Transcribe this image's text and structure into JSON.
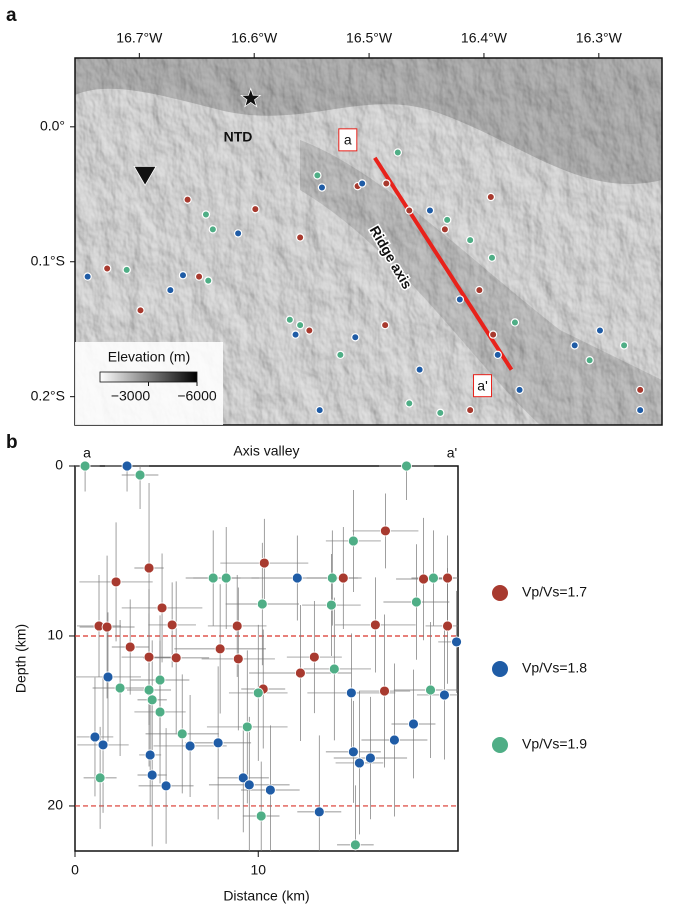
{
  "chart_data": [
    {
      "type": "map",
      "panel": "a",
      "xlim": [
        -16.756,
        -16.245
      ],
      "ylim": [
        -0.221,
        0.051
      ],
      "xticks": [
        {
          "value": -16.7,
          "label": "16.7°W"
        },
        {
          "value": -16.6,
          "label": "16.6°W"
        },
        {
          "value": -16.5,
          "label": "16.5°W"
        },
        {
          "value": -16.4,
          "label": "16.4°W"
        },
        {
          "value": -16.3,
          "label": "16.3°W"
        }
      ],
      "yticks": [
        {
          "value": 0,
          "label": "0.0°"
        },
        {
          "value": -0.1,
          "label": "0.1°S"
        },
        {
          "value": -0.2,
          "label": "0.2°S"
        }
      ],
      "annotations": {
        "basin": "NTD",
        "ridge": "Ridge axis"
      },
      "profile": {
        "labels": [
          "a",
          "a'"
        ],
        "lon": [
          -16.495,
          -16.376
        ],
        "lat": [
          -0.023,
          -0.18
        ],
        "color": "#e8221b"
      },
      "markers": [
        {
          "shape": "star",
          "lon": -16.603,
          "lat": 0.021
        },
        {
          "shape": "triangle",
          "lon": -16.695,
          "lat": -0.036
        }
      ],
      "colorbar": {
        "label": "Elevation (m)",
        "clim": [
          0,
          -6000
        ],
        "ticks": [
          {
            "value": -3000,
            "label": "−3000"
          },
          {
            "value": -6000,
            "label": "−6000"
          }
        ]
      },
      "series": [
        {
          "color": "#a83a2f",
          "lon": [
            -16.728,
            -16.699,
            -16.658,
            -16.648,
            -16.599,
            -16.56,
            -16.51,
            -16.485,
            -16.465,
            -16.434,
            -16.404,
            -16.394,
            -16.392,
            -16.412,
            -16.486,
            -16.552,
            -16.264
          ],
          "lat": [
            -0.105,
            -0.136,
            -0.054,
            -0.111,
            -0.061,
            -0.082,
            -0.044,
            -0.042,
            -0.062,
            -0.076,
            -0.121,
            -0.052,
            -0.154,
            -0.21,
            -0.147,
            -0.151,
            -0.195
          ]
        },
        {
          "color": "#1f5ca6",
          "lon": [
            -16.745,
            -16.673,
            -16.662,
            -16.614,
            -16.541,
            -16.506,
            -16.447,
            -16.421,
            -16.388,
            -16.299,
            -16.264,
            -16.512,
            -16.543,
            -16.456,
            -16.369,
            -16.321,
            -16.564
          ],
          "lat": [
            -0.111,
            -0.121,
            -0.11,
            -0.079,
            -0.045,
            -0.042,
            -0.062,
            -0.128,
            -0.169,
            -0.151,
            -0.21,
            -0.156,
            -0.21,
            -0.18,
            -0.195,
            -0.162,
            -0.154
          ]
        },
        {
          "color": "#4fae86",
          "lon": [
            -16.711,
            -16.642,
            -16.636,
            -16.64,
            -16.545,
            -16.475,
            -16.432,
            -16.412,
            -16.393,
            -16.373,
            -16.278,
            -16.569,
            -16.56,
            -16.525,
            -16.465,
            -16.438,
            -16.308
          ],
          "lat": [
            -0.106,
            -0.065,
            -0.076,
            -0.114,
            -0.036,
            -0.019,
            -0.069,
            -0.084,
            -0.097,
            -0.145,
            -0.162,
            -0.143,
            -0.147,
            -0.169,
            -0.205,
            -0.212,
            -0.173
          ]
        }
      ]
    },
    {
      "type": "scatter",
      "panel": "b",
      "title": "Axis valley",
      "start_label": "a",
      "end_label": "a'",
      "xlabel": "Distance (km)",
      "ylabel": "Depth (km)",
      "xlim": [
        0,
        20.9
      ],
      "ylim": [
        0,
        22.65
      ],
      "invert_y": true,
      "xticks": [
        0,
        10
      ],
      "yticks": [
        0,
        10,
        20
      ],
      "reference_lines": [
        10,
        20
      ],
      "legend": "right",
      "series": [
        {
          "name": "Vp/Vs=1.7",
          "color": "#a83a2f",
          "x": [
            1.31,
            1.75,
            2.24,
            3.01,
            4.04,
            4.04,
            4.75,
            5.3,
            5.52,
            7.92,
            8.85,
            8.91,
            10.33,
            10.27,
            12.3,
            13.06,
            14.64,
            16.39,
            16.89,
            16.94,
            19.02,
            20.33,
            20.33
          ],
          "y": [
            9.41,
            9.47,
            6.82,
            10.65,
            6.0,
            11.24,
            8.35,
            9.35,
            11.29,
            10.76,
            9.41,
            11.35,
            5.71,
            13.12,
            12.18,
            11.24,
            6.59,
            9.35,
            13.24,
            3.82,
            6.65,
            6.59,
            9.41
          ],
          "xerr": [
            1.2,
            1.5,
            2.0,
            1.0,
            0.8,
            1.5,
            2.2,
            1.3,
            1.8,
            2.5,
            1.6,
            2.0,
            2.4,
            1.2,
            2.8,
            1.5,
            1.0,
            2.2,
            1.4,
            1.8,
            1.5,
            0.9,
            1.2
          ],
          "yerr": [
            3.0,
            4.2,
            3.5,
            2.8,
            5.0,
            4.0,
            3.2,
            2.5,
            4.5,
            3.8,
            3.0,
            4.2,
            2.6,
            3.5,
            4.0,
            3.3,
            3.0,
            2.8,
            4.5,
            2.2,
            3.6,
            2.5,
            3.4
          ]
        },
        {
          "name": "Vp/Vs=1.8",
          "color": "#1f5ca6",
          "x": [
            1.09,
            1.53,
            1.8,
            2.84,
            4.1,
            4.21,
            4.97,
            6.28,
            7.81,
            9.18,
            9.51,
            10.66,
            12.13,
            13.33,
            15.08,
            15.19,
            15.52,
            16.12,
            17.43,
            18.47,
            20.16,
            20.82
          ],
          "y": [
            15.94,
            16.41,
            12.41,
            0,
            17.0,
            18.18,
            18.82,
            16.47,
            16.29,
            18.35,
            18.76,
            19.06,
            6.59,
            20.35,
            13.35,
            16.82,
            17.47,
            17.18,
            16.12,
            15.18,
            13.47,
            10.35
          ],
          "xerr": [
            1.0,
            1.4,
            1.8,
            1.2,
            0.6,
            0.8,
            1.5,
            2.0,
            1.8,
            1.4,
            2.2,
            1.6,
            2.5,
            1.2,
            2.4,
            1.5,
            1.3,
            2.0,
            1.8,
            1.2,
            1.5,
            1.0
          ],
          "yerr": [
            3.5,
            4.0,
            3.8,
            1.5,
            3.0,
            4.2,
            3.4,
            3.0,
            4.5,
            3.2,
            4.0,
            3.8,
            2.5,
            4.5,
            3.5,
            3.0,
            4.2,
            3.6,
            4.5,
            3.2,
            3.8,
            3.0
          ]
        },
        {
          "name": "Vp/Vs=1.9",
          "color": "#4fae86",
          "x": [
            0.55,
            1.37,
            2.46,
            3.55,
            4.04,
            4.21,
            4.64,
            4.64,
            5.85,
            7.54,
            8.25,
            9.4,
            10.0,
            10.16,
            10.22,
            14.04,
            13.99,
            14.15,
            15.19,
            15.3,
            18.09,
            18.63,
            19.4,
            19.56
          ],
          "y": [
            0,
            18.35,
            13.06,
            0.53,
            13.18,
            13.76,
            12.59,
            14.47,
            15.76,
            6.59,
            6.59,
            15.35,
            13.35,
            20.59,
            8.12,
            6.59,
            8.18,
            11.94,
            4.41,
            22.29,
            0,
            8.0,
            13.18,
            6.59
          ],
          "xerr": [
            0.8,
            0.9,
            1.5,
            1.0,
            1.2,
            0.8,
            1.6,
            1.4,
            2.0,
            1.5,
            1.8,
            2.2,
            1.6,
            1.0,
            2.0,
            1.4,
            1.6,
            2.0,
            1.5,
            1.0,
            1.5,
            1.8,
            2.0,
            1.2
          ],
          "yerr": [
            1.5,
            3.0,
            4.0,
            2.0,
            4.5,
            3.5,
            3.8,
            4.2,
            3.5,
            2.8,
            3.0,
            4.5,
            4.0,
            3.2,
            3.6,
            2.8,
            3.0,
            4.2,
            3.0,
            3.5,
            2.0,
            3.4,
            4.0,
            2.8
          ]
        }
      ]
    }
  ]
}
